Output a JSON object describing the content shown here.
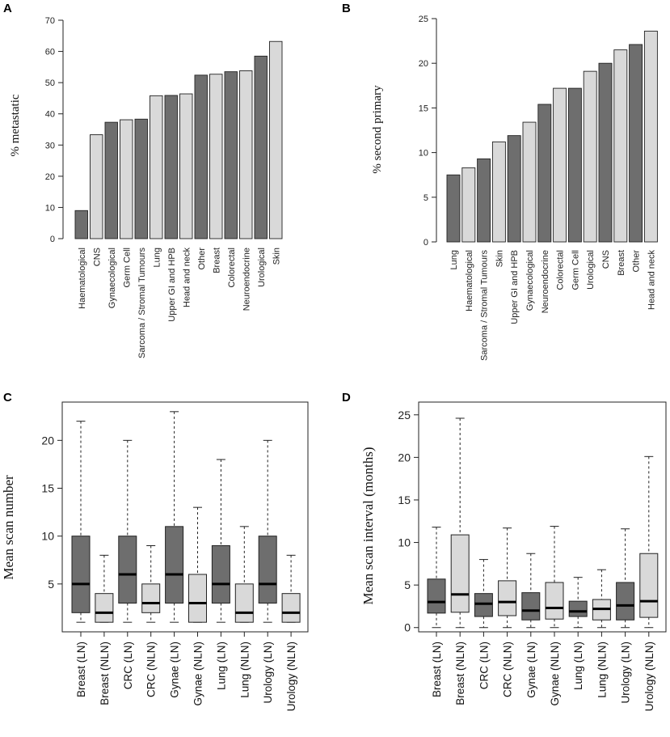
{
  "colors": {
    "dark": "#6e6e6e",
    "light": "#d9d9d9",
    "stroke": "#222222"
  },
  "chart_data": [
    {
      "panel": "A",
      "type": "bar",
      "ylabel": "% metastatic",
      "ylim": [
        0,
        70
      ],
      "yticks": [
        0,
        10,
        20,
        30,
        40,
        50,
        60,
        70
      ],
      "categories": [
        "Haematological",
        "CNS",
        "Gynaecological",
        "Germ Cell",
        "Sarcoma / Stromal Tumours",
        "Lung",
        "Upper GI and HPB",
        "Head and neck",
        "Other",
        "Breast",
        "Colorectal",
        "Neuroendocrine",
        "Urological",
        "Skin"
      ],
      "values": [
        9,
        33.3,
        37.3,
        38.1,
        38.3,
        45.8,
        45.9,
        46.4,
        52.4,
        52.7,
        53.5,
        53.8,
        58.5,
        63.2
      ],
      "fills": [
        "dark",
        "light",
        "dark",
        "light",
        "dark",
        "light",
        "dark",
        "light",
        "dark",
        "light",
        "dark",
        "light",
        "dark",
        "light"
      ]
    },
    {
      "panel": "B",
      "type": "bar",
      "ylabel": "% second primary",
      "ylim": [
        0,
        25
      ],
      "yticks": [
        0,
        5,
        10,
        15,
        20,
        25
      ],
      "categories": [
        "Lung",
        "Haematological",
        "Sarcoma / Stromal Tumours",
        "Skin",
        "Upper GI and HPB",
        "Gynaecological",
        "Neuroendocrine",
        "Colorectal",
        "Germ Cell",
        "Urological",
        "CNS",
        "Breast",
        "Other",
        "Head and neck"
      ],
      "values": [
        7.5,
        8.3,
        9.3,
        11.2,
        11.9,
        13.4,
        15.4,
        17.2,
        17.2,
        19.1,
        20.0,
        21.5,
        22.1,
        23.6
      ],
      "fills": [
        "dark",
        "light",
        "dark",
        "light",
        "dark",
        "light",
        "dark",
        "light",
        "dark",
        "light",
        "dark",
        "light",
        "dark",
        "light"
      ]
    },
    {
      "panel": "C",
      "type": "box",
      "ylabel": "Mean scan number",
      "ylim": [
        0,
        24
      ],
      "yticks": [
        5,
        10,
        15,
        20
      ],
      "categories": [
        "Breast (LN)",
        "Breast (NLN)",
        "CRC (LN)",
        "CRC (NLN)",
        "Gynae (LN)",
        "Gynae (NLN)",
        "Lung (LN)",
        "Lung (NLN)",
        "Urology (LN)",
        "Urology (NLN)"
      ],
      "boxes": [
        {
          "min": 1,
          "q1": 2,
          "median": 5,
          "q3": 10,
          "max": 22
        },
        {
          "min": 1,
          "q1": 1,
          "median": 2,
          "q3": 4,
          "max": 8
        },
        {
          "min": 1,
          "q1": 3,
          "median": 6,
          "q3": 10,
          "max": 20
        },
        {
          "min": 1,
          "q1": 2,
          "median": 3,
          "q3": 5,
          "max": 9
        },
        {
          "min": 1,
          "q1": 3,
          "median": 6,
          "q3": 11,
          "max": 23
        },
        {
          "min": 1,
          "q1": 1,
          "median": 3,
          "q3": 6,
          "max": 13
        },
        {
          "min": 1,
          "q1": 3,
          "median": 5,
          "q3": 9,
          "max": 18
        },
        {
          "min": 1,
          "q1": 1,
          "median": 2,
          "q3": 5,
          "max": 11
        },
        {
          "min": 1,
          "q1": 3,
          "median": 5,
          "q3": 10,
          "max": 20
        },
        {
          "min": 1,
          "q1": 1,
          "median": 2,
          "q3": 4,
          "max": 8
        }
      ],
      "fills": [
        "dark",
        "light",
        "dark",
        "light",
        "dark",
        "light",
        "dark",
        "light",
        "dark",
        "light"
      ]
    },
    {
      "panel": "D",
      "type": "box",
      "ylabel": "Mean scan interval (months)",
      "ylim": [
        -0.5,
        26.5
      ],
      "yticks": [
        0,
        5,
        10,
        15,
        20,
        25
      ],
      "categories": [
        "Breast (LN)",
        "Breast (NLN)",
        "CRC (LN)",
        "CRC (NLN)",
        "Gynae (LN)",
        "Gynae (NLN)",
        "Lung (LN)",
        "Lung (NLN)",
        "Urology (LN)",
        "Urology (NLN)"
      ],
      "boxes": [
        {
          "min": 0,
          "q1": 1.7,
          "median": 3.0,
          "q3": 5.7,
          "max": 11.8
        },
        {
          "min": 0,
          "q1": 1.8,
          "median": 3.9,
          "q3": 10.9,
          "max": 24.6
        },
        {
          "min": 0,
          "q1": 1.3,
          "median": 2.8,
          "q3": 4.0,
          "max": 8.0
        },
        {
          "min": 0,
          "q1": 1.4,
          "median": 3.0,
          "q3": 5.5,
          "max": 11.7
        },
        {
          "min": 0,
          "q1": 0.9,
          "median": 2.0,
          "q3": 4.1,
          "max": 8.7
        },
        {
          "min": 0,
          "q1": 1.0,
          "median": 2.3,
          "q3": 5.3,
          "max": 11.9
        },
        {
          "min": 0,
          "q1": 1.3,
          "median": 1.9,
          "q3": 3.1,
          "max": 5.9
        },
        {
          "min": 0,
          "q1": 0.9,
          "median": 2.2,
          "q3": 3.3,
          "max": 6.8
        },
        {
          "min": 0,
          "q1": 0.9,
          "median": 2.6,
          "q3": 5.3,
          "max": 11.6
        },
        {
          "min": 0,
          "q1": 1.2,
          "median": 3.1,
          "q3": 8.7,
          "max": 20.1
        }
      ],
      "fills": [
        "dark",
        "light",
        "dark",
        "light",
        "dark",
        "light",
        "dark",
        "light",
        "dark",
        "light"
      ]
    }
  ]
}
